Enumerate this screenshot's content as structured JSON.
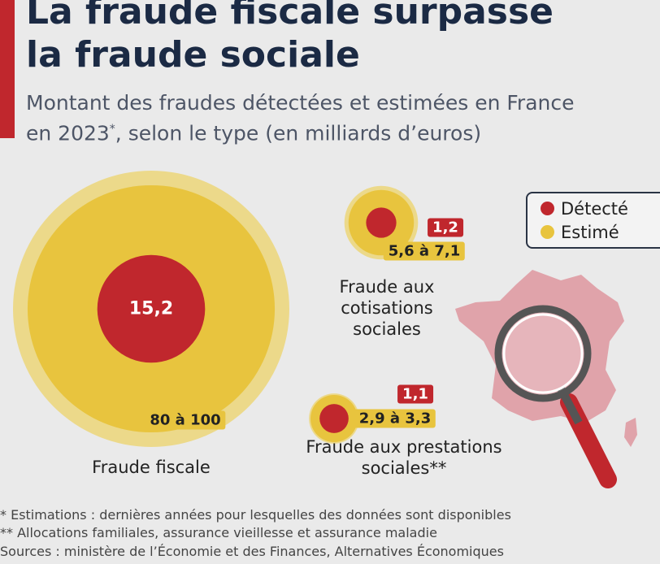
{
  "title": "La fraude fiscale surpasse la fraude sociale",
  "subtitle": [
    "Montant des fraudes détectées et estimées en France en 2023",
    "*",
    ", selon le type (en milliards d’euros)"
  ],
  "chart_data": {
    "type": "bubble",
    "categories": [
      "Fraude fiscale",
      "Fraude aux cotisations sociales",
      "Fraude aux prestations sociales**"
    ],
    "series": [
      {
        "name": "Détecté",
        "color": "#c0272d",
        "values": [
          15.2,
          1.2,
          1.1
        ],
        "value_labels": [
          "15,2",
          "1,2",
          "1,1"
        ]
      },
      {
        "name": "Estimé",
        "color": "#e8c43e",
        "range_color": "#ecd98a",
        "low": [
          80,
          5.6,
          2.9
        ],
        "values": [
          100,
          7.1,
          3.3
        ],
        "value_labels": [
          "80 à 100",
          "5,6 à 7,1",
          "2,9 à 3,3"
        ]
      }
    ]
  },
  "footnotes": [
    "*   Estimations : dernières années pour lesquelles des données sont disponibles",
    "** Allocations familiales, assurance vieillesse et assurance maladie"
  ],
  "source": "Sources : ministère de l’Économie et des Finances, Alternatives Économiques"
}
